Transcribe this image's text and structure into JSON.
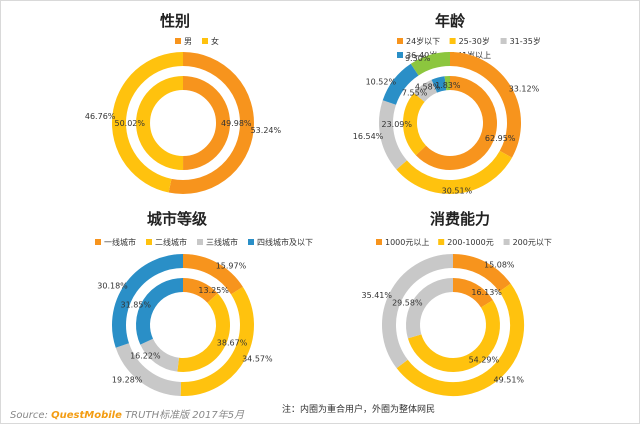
{
  "colors": {
    "orange": "#f7941d",
    "yellow": "#ffc20e",
    "gray": "#c8c8c8",
    "blue": "#2a8fc7",
    "green": "#8cc63e"
  },
  "chart_data": [
    {
      "type": "pie",
      "subtype": "nested-donut",
      "title": "性别",
      "legend": [
        {
          "name": "男",
          "color": "#f7941d"
        },
        {
          "name": "女",
          "color": "#ffc20e"
        }
      ],
      "inner": [
        {
          "name": "男",
          "value": 49.98,
          "label": "49.98%"
        },
        {
          "name": "女",
          "value": 50.02,
          "label": "50.02%"
        }
      ],
      "outer": [
        {
          "name": "男",
          "value": 53.24,
          "label": "53.24%"
        },
        {
          "name": "女",
          "value": 46.76,
          "label": "46.76%"
        }
      ]
    },
    {
      "type": "pie",
      "subtype": "nested-donut",
      "title": "年龄",
      "legend": [
        {
          "name": "24岁以下",
          "color": "#f7941d"
        },
        {
          "name": "25-30岁",
          "color": "#ffc20e"
        },
        {
          "name": "31-35岁",
          "color": "#c8c8c8"
        },
        {
          "name": "36-40岁",
          "color": "#2a8fc7"
        },
        {
          "name": "41岁以上",
          "color": "#8cc63e"
        }
      ],
      "inner": [
        {
          "name": "24岁以下",
          "value": 62.95,
          "label": "62.95%"
        },
        {
          "name": "25-30岁",
          "value": 23.09,
          "label": "23.09%"
        },
        {
          "name": "31-35岁",
          "value": 7.55,
          "label": "7.55%"
        },
        {
          "name": "36-40岁",
          "value": 4.58,
          "label": "4.58%"
        },
        {
          "name": "41岁以上",
          "value": 1.83,
          "label": "1.83%"
        }
      ],
      "outer": [
        {
          "name": "24岁以下",
          "value": 33.12,
          "label": "33.12%"
        },
        {
          "name": "25-30岁",
          "value": 30.51,
          "label": "30.51%"
        },
        {
          "name": "31-35岁",
          "value": 16.54,
          "label": "16.54%"
        },
        {
          "name": "36-40岁",
          "value": 10.52,
          "label": "10.52%"
        },
        {
          "name": "41岁以上",
          "value": 9.3,
          "label": "9.30%"
        }
      ]
    },
    {
      "type": "pie",
      "subtype": "nested-donut",
      "title": "城市等级",
      "legend": [
        {
          "name": "一线城市",
          "color": "#f7941d"
        },
        {
          "name": "二线城市",
          "color": "#ffc20e"
        },
        {
          "name": "三线城市",
          "color": "#c8c8c8"
        },
        {
          "name": "四线城市及以下",
          "color": "#2a8fc7"
        }
      ],
      "inner": [
        {
          "name": "一线城市",
          "value": 13.25,
          "label": "13.25%"
        },
        {
          "name": "二线城市",
          "value": 38.67,
          "label": "38.67%"
        },
        {
          "name": "三线城市",
          "value": 16.22,
          "label": "16.22%"
        },
        {
          "name": "四线城市及以下",
          "value": 31.85,
          "label": "31.85%"
        }
      ],
      "outer": [
        {
          "name": "一线城市",
          "value": 15.97,
          "label": "15.97%"
        },
        {
          "name": "二线城市",
          "value": 34.57,
          "label": "34.57%"
        },
        {
          "name": "三线城市",
          "value": 19.28,
          "label": "19.28%"
        },
        {
          "name": "四线城市及以下",
          "value": 30.18,
          "label": "30.18%"
        }
      ]
    },
    {
      "type": "pie",
      "subtype": "nested-donut",
      "title": "消费能力",
      "legend": [
        {
          "name": "1000元以上",
          "color": "#f7941d"
        },
        {
          "name": "200-1000元",
          "color": "#ffc20e"
        },
        {
          "name": "200元以下",
          "color": "#c8c8c8"
        }
      ],
      "inner": [
        {
          "name": "1000元以上",
          "value": 16.13,
          "label": "16.13%"
        },
        {
          "name": "200-1000元",
          "value": 54.29,
          "label": "54.29%"
        },
        {
          "name": "200元以下",
          "value": 29.58,
          "label": "29.58%"
        }
      ],
      "outer": [
        {
          "name": "1000元以上",
          "value": 15.08,
          "label": "15.08%"
        },
        {
          "name": "200-1000元",
          "value": 49.51,
          "label": "49.51%"
        },
        {
          "name": "200元以下",
          "value": 35.41,
          "label": "35.41%"
        }
      ]
    }
  ],
  "footer": {
    "source_prefix": "Source:",
    "source_brand": "QuestMobile",
    "source_suffix": "TRUTH标准版 2017年5月",
    "note": "注：内圈为重合用户，外圈为整体网民"
  }
}
